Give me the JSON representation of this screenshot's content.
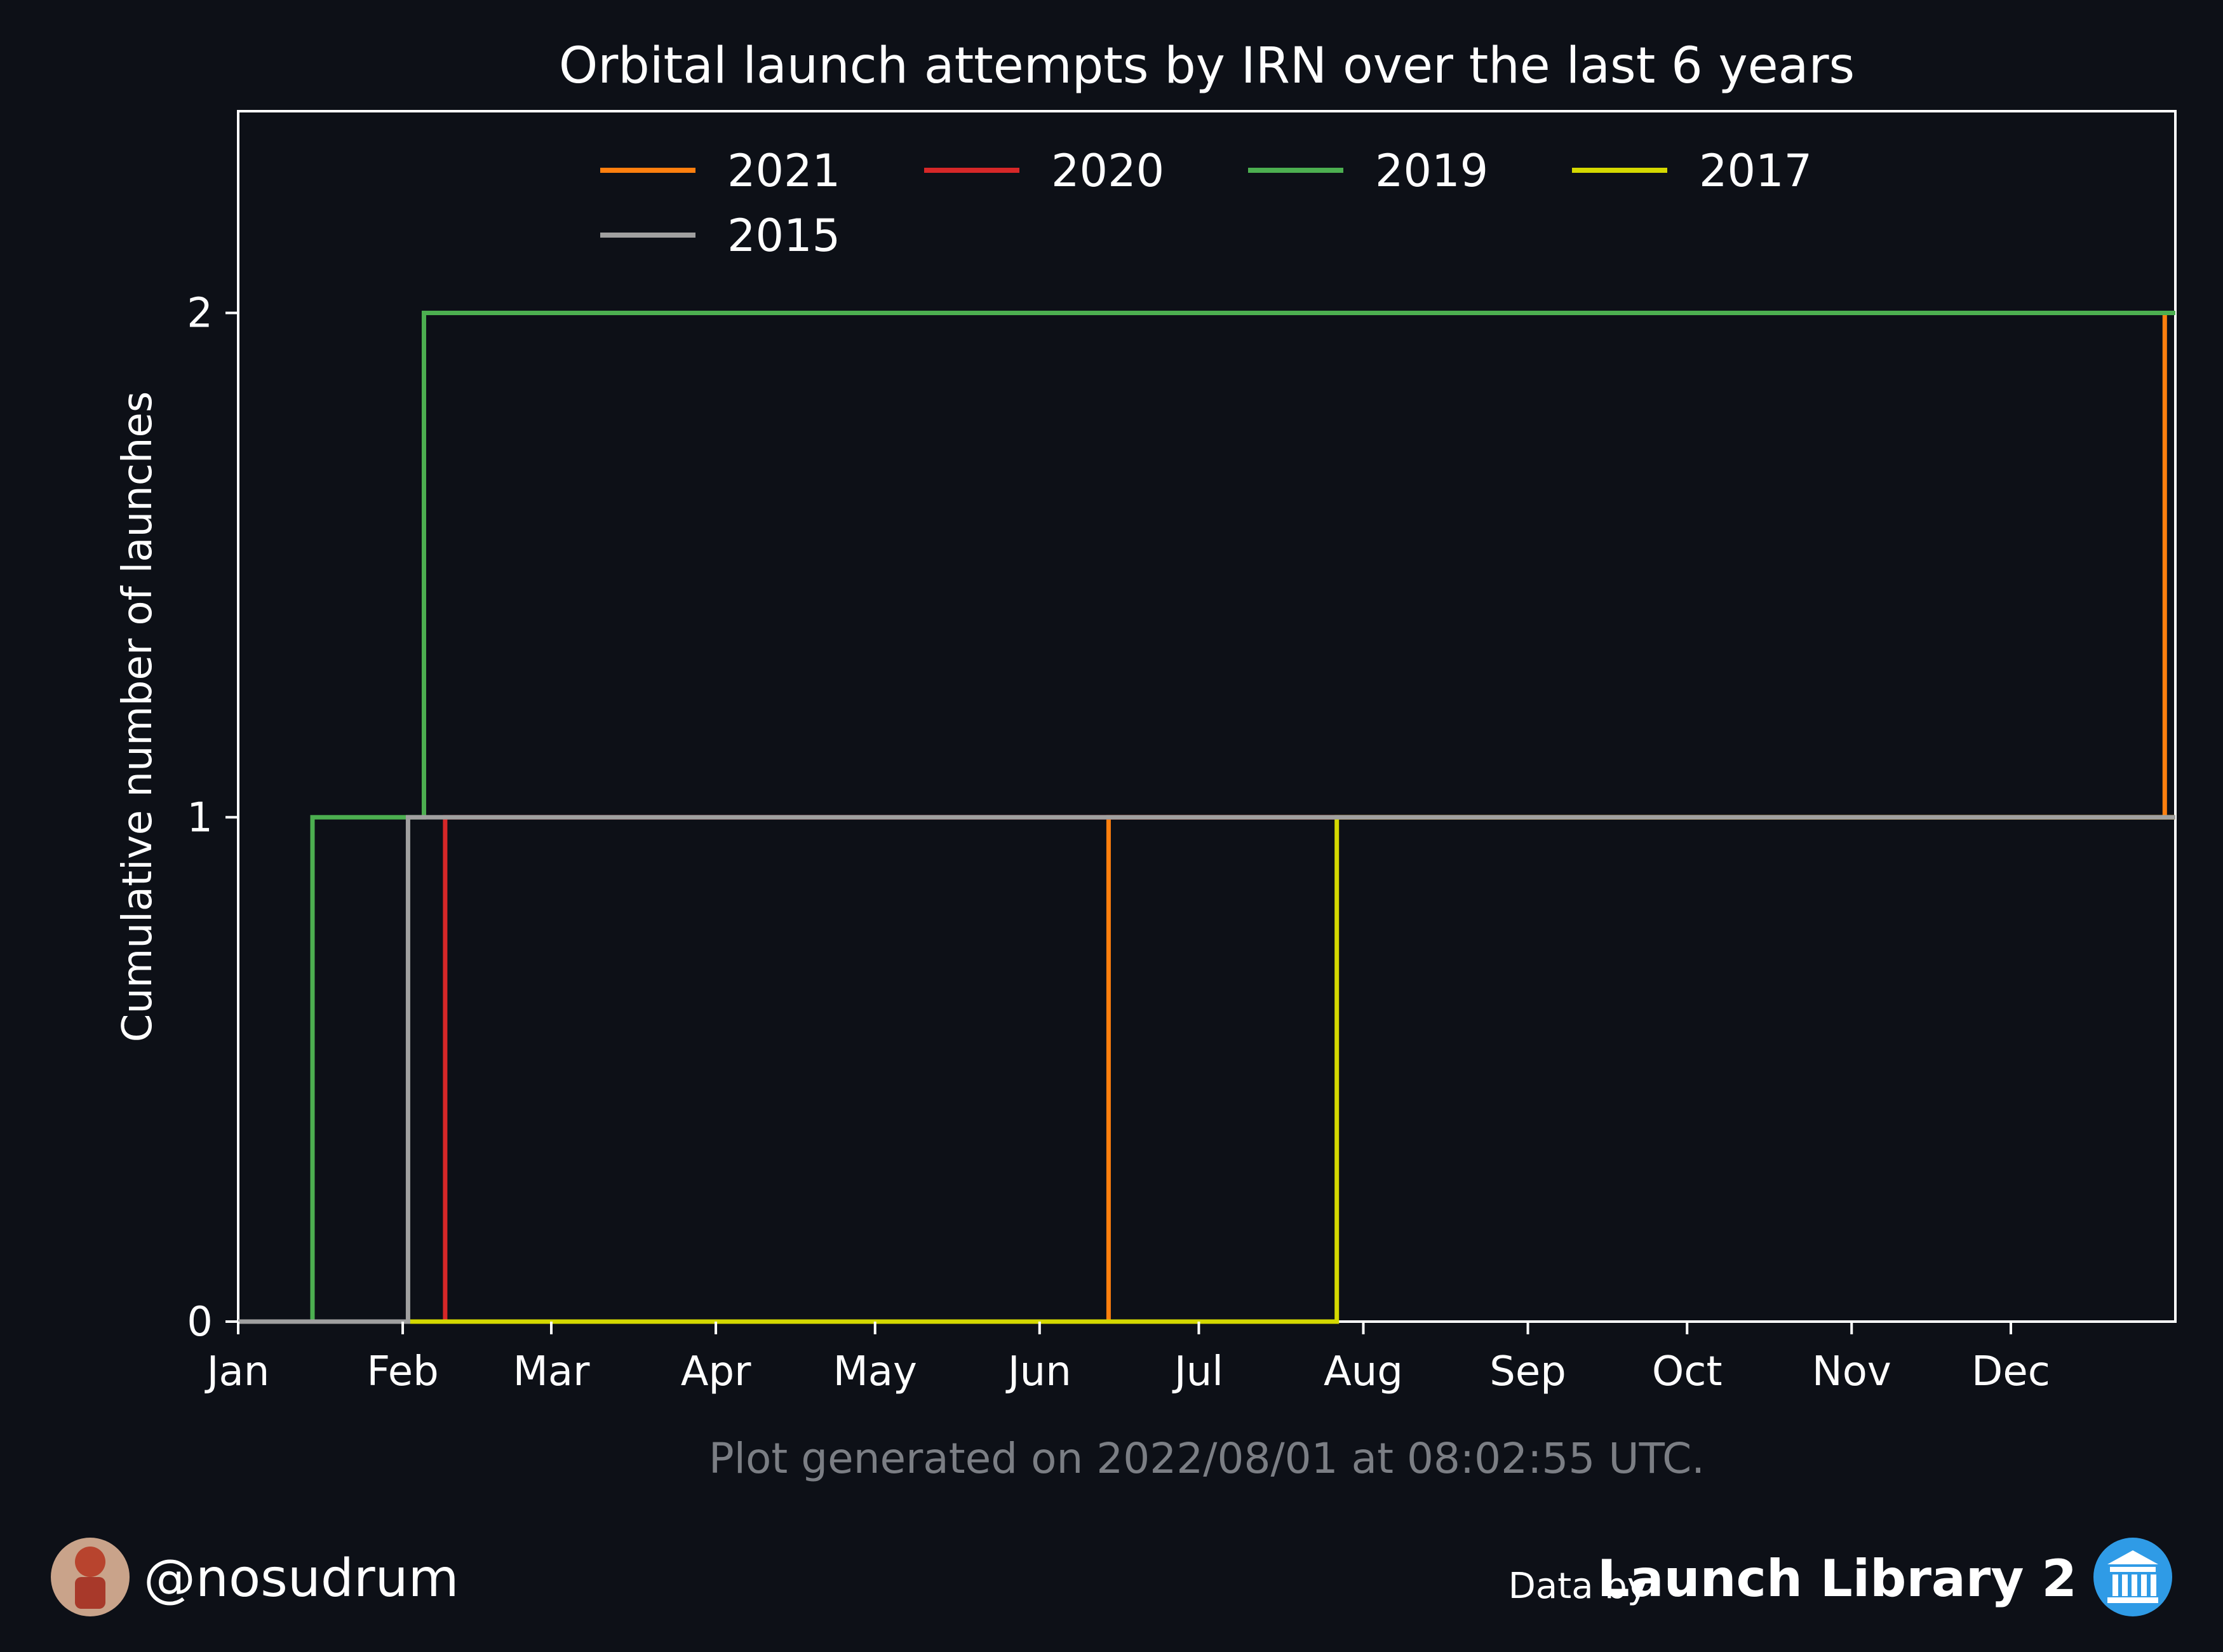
{
  "chart_data": {
    "type": "line",
    "step": "post",
    "title": "Orbital launch attempts by IRN over the last 6 years",
    "xlabel": "",
    "ylabel": "Cumulative number of launches",
    "x_unit": "day of year",
    "xlim": [
      1,
      366
    ],
    "ylim": [
      0,
      2.4
    ],
    "x_tick_labels": [
      "Jan",
      "Feb",
      "Mar",
      "Apr",
      "May",
      "Jun",
      "Jul",
      "Aug",
      "Sep",
      "Oct",
      "Nov",
      "Dec"
    ],
    "y_ticks": [
      0,
      1,
      2
    ],
    "grid": false,
    "legend": {
      "placement": "top-center",
      "columns": 4
    },
    "series": [
      {
        "name": "2021",
        "color": "#ff7f0e",
        "x": [
          1,
          165,
          364
        ],
        "y": [
          0,
          1,
          2
        ]
      },
      {
        "name": "2020",
        "color": "#d62728",
        "x": [
          1,
          40
        ],
        "y": [
          0,
          1
        ]
      },
      {
        "name": "2019",
        "color": "#4caf50",
        "x": [
          1,
          15,
          36,
          366
        ],
        "y": [
          0,
          1,
          2,
          2
        ]
      },
      {
        "name": "2017",
        "color": "#d4d800",
        "x": [
          1,
          208
        ],
        "y": [
          0,
          1
        ]
      },
      {
        "name": "2015",
        "color": "#a0a0a0",
        "x": [
          1,
          33,
          366
        ],
        "y": [
          0,
          1,
          1
        ]
      }
    ]
  },
  "footnote": "Plot generated on 2022/08/01 at 08:02:55 UTC.",
  "footer": {
    "handle": "@nosudrum",
    "credit_prefix": "Data by",
    "credit_name": "Launch Library 2",
    "avatar_icon": "astronaut-avatar",
    "credit_icon": "bank-icon"
  }
}
